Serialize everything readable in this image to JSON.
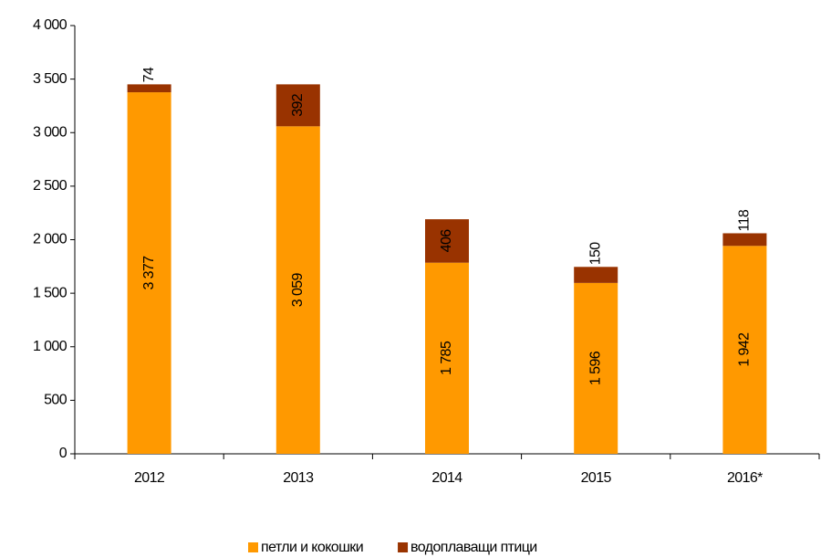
{
  "chart_data": {
    "type": "bar",
    "stacked": true,
    "categories": [
      "2012",
      "2013",
      "2014",
      "2015",
      "2016*"
    ],
    "series": [
      {
        "name": "петли и кокошки",
        "color": "#ff9900",
        "values": [
          3377,
          3059,
          1785,
          1596,
          1942
        ],
        "value_labels": [
          "3 377",
          "3 059",
          "1 785",
          "1 596",
          "1 942"
        ]
      },
      {
        "name": "водоплаващи птици",
        "color": "#993300",
        "values": [
          74,
          392,
          406,
          150,
          118
        ]
      }
    ],
    "ylim": [
      0,
      4000
    ],
    "yticks": [
      0,
      500,
      {
        "value": 1000,
        "label": "1 000"
      },
      {
        "value": 1500,
        "label": "1 500"
      },
      {
        "value": 2000,
        "label": "2 000"
      },
      {
        "value": 2500,
        "label": "2 500"
      },
      {
        "value": 3000,
        "label": "3 000"
      },
      {
        "value": 3500,
        "label": "3 500"
      },
      {
        "value": 4000,
        "label": "4 000"
      }
    ],
    "legend": "bottom"
  }
}
